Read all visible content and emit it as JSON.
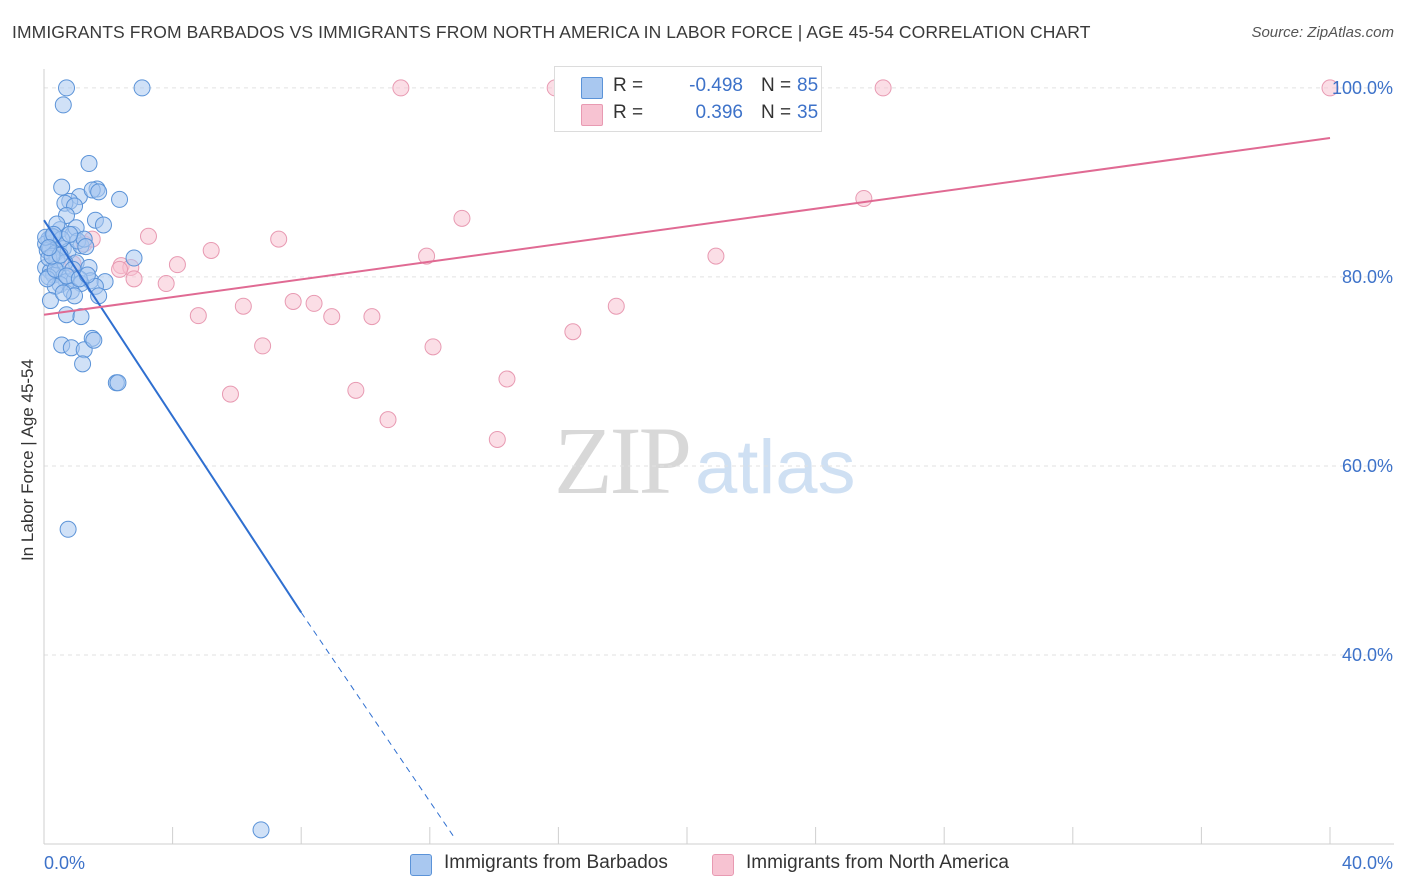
{
  "header": {
    "title": "IMMIGRANTS FROM BARBADOS VS IMMIGRANTS FROM NORTH AMERICA IN LABOR FORCE | AGE 45-54 CORRELATION CHART",
    "source": "Source: ZipAtlas.com"
  },
  "watermark": {
    "zip": "ZIP",
    "atlas": "atlas"
  },
  "legend": {
    "series1": {
      "r_label": "R =",
      "r_value": "-0.498",
      "n_label": "N =",
      "n_value": "85"
    },
    "series2": {
      "r_label": "R =",
      "r_value": "0.396",
      "n_label": "N =",
      "n_value": "35"
    }
  },
  "bottom_legend": {
    "series1_label": "Immigrants from Barbados",
    "series2_label": "Immigrants from North America"
  },
  "colors": {
    "series1_fill": "#a9c8f0",
    "series1_stroke": "#5b93d8",
    "series1_line": "#2f6fd0",
    "series2_fill": "#f7c3d2",
    "series2_stroke": "#e89ab2",
    "series2_line": "#e06a93",
    "tick_label": "#3d72c9",
    "grid": "#e2e2e2"
  },
  "chart_data": {
    "type": "scatter",
    "title": "IMMIGRANTS FROM BARBADOS VS IMMIGRANTS FROM NORTH AMERICA IN LABOR FORCE | AGE 45-54 CORRELATION CHART",
    "xlabel": "",
    "ylabel": "In Labor Force | Age 45-54",
    "xlim": [
      0,
      40
    ],
    "ylim": [
      20,
      102
    ],
    "x_tick_labels": [
      "0.0%",
      "40.0%"
    ],
    "y_ticks": [
      40,
      60,
      80,
      100
    ],
    "y_tick_labels": [
      "40.0%",
      "60.0%",
      "80.0%",
      "100.0%"
    ],
    "series": [
      {
        "name": "Immigrants from Barbados",
        "R": -0.498,
        "N": 85,
        "points": [
          [
            0.7,
            100
          ],
          [
            0.6,
            98.2
          ],
          [
            3.05,
            100
          ],
          [
            1.4,
            92.0
          ],
          [
            0.55,
            89.5
          ],
          [
            1.1,
            88.5
          ],
          [
            0.8,
            88.0
          ],
          [
            2.35,
            88.2
          ],
          [
            1.65,
            89.3
          ],
          [
            1.5,
            89.2
          ],
          [
            1.7,
            89.0
          ],
          [
            0.65,
            87.8
          ],
          [
            0.95,
            87.5
          ],
          [
            0.7,
            86.5
          ],
          [
            1.6,
            86.0
          ],
          [
            0.5,
            85.0
          ],
          [
            0.9,
            84.5
          ],
          [
            1.85,
            85.5
          ],
          [
            0.4,
            85.6
          ],
          [
            1.0,
            85.2
          ],
          [
            0.15,
            84.0
          ],
          [
            0.3,
            84.2
          ],
          [
            0.25,
            83.6
          ],
          [
            0.05,
            83.5
          ],
          [
            0.2,
            83.0
          ],
          [
            0.45,
            83.3
          ],
          [
            0.1,
            82.8
          ],
          [
            0.35,
            82.5
          ],
          [
            0.6,
            83.0
          ],
          [
            0.75,
            82.7
          ],
          [
            1.15,
            83.3
          ],
          [
            1.0,
            81.5
          ],
          [
            0.05,
            81.0
          ],
          [
            0.2,
            80.6
          ],
          [
            0.3,
            80.2
          ],
          [
            0.45,
            80.5
          ],
          [
            0.6,
            80.0
          ],
          [
            0.15,
            80.0
          ],
          [
            0.7,
            79.5
          ],
          [
            0.5,
            79.2
          ],
          [
            1.4,
            81.0
          ],
          [
            2.8,
            82.0
          ],
          [
            0.95,
            79.7
          ],
          [
            1.45,
            79.6
          ],
          [
            1.15,
            79.3
          ],
          [
            1.9,
            79.5
          ],
          [
            0.35,
            79.0
          ],
          [
            0.85,
            78.5
          ],
          [
            1.6,
            79.0
          ],
          [
            0.2,
            77.5
          ],
          [
            0.95,
            78.0
          ],
          [
            1.7,
            78.0
          ],
          [
            0.7,
            76.0
          ],
          [
            1.15,
            75.8
          ],
          [
            1.5,
            73.5
          ],
          [
            0.55,
            72.8
          ],
          [
            0.85,
            72.5
          ],
          [
            1.25,
            72.3
          ],
          [
            1.55,
            73.3
          ],
          [
            1.2,
            70.8
          ],
          [
            2.25,
            68.8
          ],
          [
            2.3,
            68.8
          ],
          [
            0.75,
            53.3
          ],
          [
            6.75,
            21.5
          ],
          [
            0.25,
            84.3
          ],
          [
            0.4,
            81.8
          ],
          [
            0.15,
            82.0
          ],
          [
            0.65,
            81.5
          ],
          [
            0.9,
            80.8
          ],
          [
            1.05,
            83.8
          ],
          [
            0.1,
            79.8
          ],
          [
            0.55,
            84.0
          ],
          [
            1.25,
            84.0
          ],
          [
            0.35,
            80.8
          ],
          [
            0.8,
            84.5
          ],
          [
            1.3,
            83.2
          ],
          [
            0.05,
            84.2
          ],
          [
            0.25,
            82.2
          ],
          [
            0.5,
            82.3
          ],
          [
            0.7,
            80.1
          ],
          [
            1.1,
            79.8
          ],
          [
            0.3,
            84.5
          ],
          [
            0.15,
            83.1
          ],
          [
            0.6,
            78.3
          ],
          [
            1.35,
            80.2
          ]
        ],
        "trend": {
          "x_start": 0.0,
          "y_start": 86.0,
          "x_end": 8.0,
          "y_end": 44.5,
          "dashed_to_x": 12.8,
          "dashed_to_y": 20.5
        }
      },
      {
        "name": "Immigrants from North America",
        "R": 0.396,
        "N": 35,
        "points": [
          [
            11.1,
            100
          ],
          [
            15.9,
            100
          ],
          [
            26.1,
            100
          ],
          [
            40.0,
            100
          ],
          [
            25.5,
            88.3
          ],
          [
            13.0,
            86.2
          ],
          [
            3.25,
            84.3
          ],
          [
            7.3,
            84.0
          ],
          [
            1.25,
            83.5
          ],
          [
            5.2,
            82.8
          ],
          [
            11.9,
            82.2
          ],
          [
            20.9,
            82.2
          ],
          [
            4.15,
            81.3
          ],
          [
            2.4,
            81.2
          ],
          [
            2.7,
            81.0
          ],
          [
            2.35,
            80.8
          ],
          [
            2.8,
            79.8
          ],
          [
            3.8,
            79.3
          ],
          [
            7.75,
            77.4
          ],
          [
            6.2,
            76.9
          ],
          [
            8.4,
            77.2
          ],
          [
            17.8,
            76.9
          ],
          [
            4.8,
            75.9
          ],
          [
            8.95,
            75.8
          ],
          [
            10.2,
            75.8
          ],
          [
            16.45,
            74.2
          ],
          [
            6.8,
            72.7
          ],
          [
            12.1,
            72.6
          ],
          [
            14.4,
            69.2
          ],
          [
            9.7,
            68.0
          ],
          [
            5.8,
            67.6
          ],
          [
            10.7,
            64.9
          ],
          [
            14.1,
            62.8
          ],
          [
            1.5,
            84.0
          ],
          [
            0.9,
            81.4
          ]
        ],
        "trend": {
          "x_start": 0.0,
          "y_start": 76.0,
          "x_end": 40.0,
          "y_end": 94.7
        }
      }
    ]
  }
}
